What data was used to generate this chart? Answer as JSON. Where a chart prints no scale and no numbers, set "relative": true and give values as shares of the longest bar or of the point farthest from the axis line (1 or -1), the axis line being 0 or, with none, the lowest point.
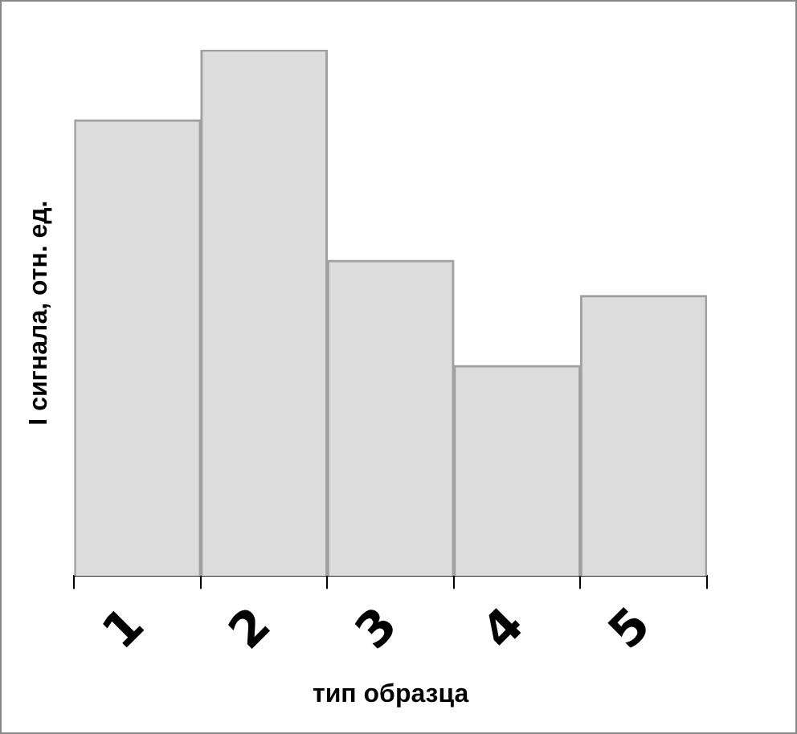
{
  "chart_data": {
    "type": "bar",
    "relative": true,
    "xlabel": "тип образца",
    "ylabel": "I сигнала, отн. ед.",
    "categories": [
      "1",
      "2",
      "3",
      "4",
      "5"
    ],
    "values": [
      0.867,
      1,
      0.6,
      0.4,
      0.533
    ],
    "color": "#dcdcdc",
    "grid": false,
    "legend": false
  }
}
